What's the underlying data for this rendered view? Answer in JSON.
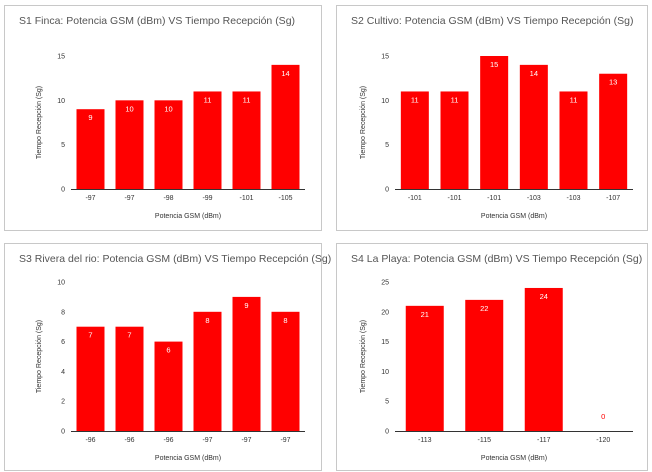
{
  "chart_data": [
    {
      "type": "bar",
      "title": "S1 Finca: Potencia GSM (dBm) VS Tiempo Recepción (Sg)",
      "xlabel": "Potencia GSM (dBm)",
      "ylabel": "Tiempo Recepción (Sg)",
      "categories": [
        "-97",
        "-97",
        "-98",
        "-99",
        "-101",
        "-105"
      ],
      "values": [
        9,
        10,
        10,
        11,
        11,
        14
      ],
      "ylim": [
        0,
        15
      ],
      "yticks": [
        0,
        5,
        10,
        15
      ],
      "color": "#ff0000",
      "grid": false
    },
    {
      "type": "bar",
      "title": "S2 Cultivo: Potencia GSM (dBm) VS Tiempo Recepción (Sg)",
      "xlabel": "Potencia GSM (dBm)",
      "ylabel": "Tiempo Recepción (Sg)",
      "categories": [
        "-101",
        "-101",
        "-101",
        "-103",
        "-103",
        "-107"
      ],
      "values": [
        11,
        11,
        15,
        14,
        11,
        13
      ],
      "ylim": [
        0,
        15
      ],
      "yticks": [
        0,
        5,
        10,
        15
      ],
      "color": "#ff0000",
      "grid": false
    },
    {
      "type": "bar",
      "title": "S3 Rivera del rio: Potencia GSM (dBm) VS Tiempo Recepción (Sg)",
      "xlabel": "Potencia GSM (dBm)",
      "ylabel": "Tiempo Recepción (Sg)",
      "categories": [
        "-96",
        "-96",
        "-96",
        "-97",
        "-97",
        "-97"
      ],
      "values": [
        7,
        7,
        6,
        8,
        9,
        8
      ],
      "ylim": [
        0,
        10
      ],
      "yticks": [
        0,
        2,
        4,
        6,
        8,
        10
      ],
      "color": "#ff0000",
      "grid": false
    },
    {
      "type": "bar",
      "title": "S4 La Playa: Potencia GSM (dBm) VS Tiempo Recepción (Sg)",
      "xlabel": "Potencia GSM (dBm)",
      "ylabel": "Tiempo Recepción (Sg)",
      "categories": [
        "-113",
        "-115",
        "-117",
        "-120"
      ],
      "values": [
        21,
        22,
        24,
        0
      ],
      "ylim": [
        0,
        25
      ],
      "yticks": [
        0,
        5,
        10,
        15,
        20,
        25
      ],
      "color": "#ff0000",
      "grid": false
    }
  ]
}
